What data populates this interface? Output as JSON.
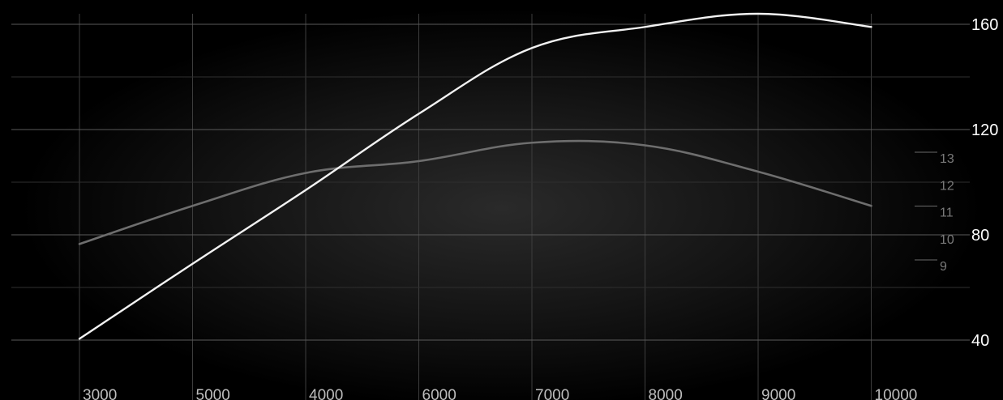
{
  "chart_data": {
    "type": "line",
    "x_tick_labels": [
      "3000",
      "5000",
      "4000",
      "6000",
      "7000",
      "8000",
      "9000",
      "10000"
    ],
    "y_left_ticks": [
      "160",
      "120",
      "80",
      "40"
    ],
    "y_left_range": [
      40,
      164
    ],
    "y_right_ticks": [
      "13",
      "12",
      "11",
      "10",
      "9"
    ],
    "y_right_range": [
      9,
      13
    ],
    "grid": true,
    "series": [
      {
        "axis": "left",
        "color": "#f2f2f2",
        "x": [
          3000,
          5000,
          4000,
          6000,
          7000,
          8000,
          9000,
          10000
        ],
        "y": [
          40.5,
          69,
          97,
          126,
          151,
          159,
          164,
          159
        ]
      },
      {
        "axis": "left",
        "color": "#6e6e6e",
        "x": [
          3000,
          5000,
          4000,
          6000,
          7000,
          8000,
          9000,
          10000
        ],
        "y": [
          76.5,
          91,
          103.5,
          108,
          115,
          114,
          104,
          91
        ]
      }
    ]
  }
}
